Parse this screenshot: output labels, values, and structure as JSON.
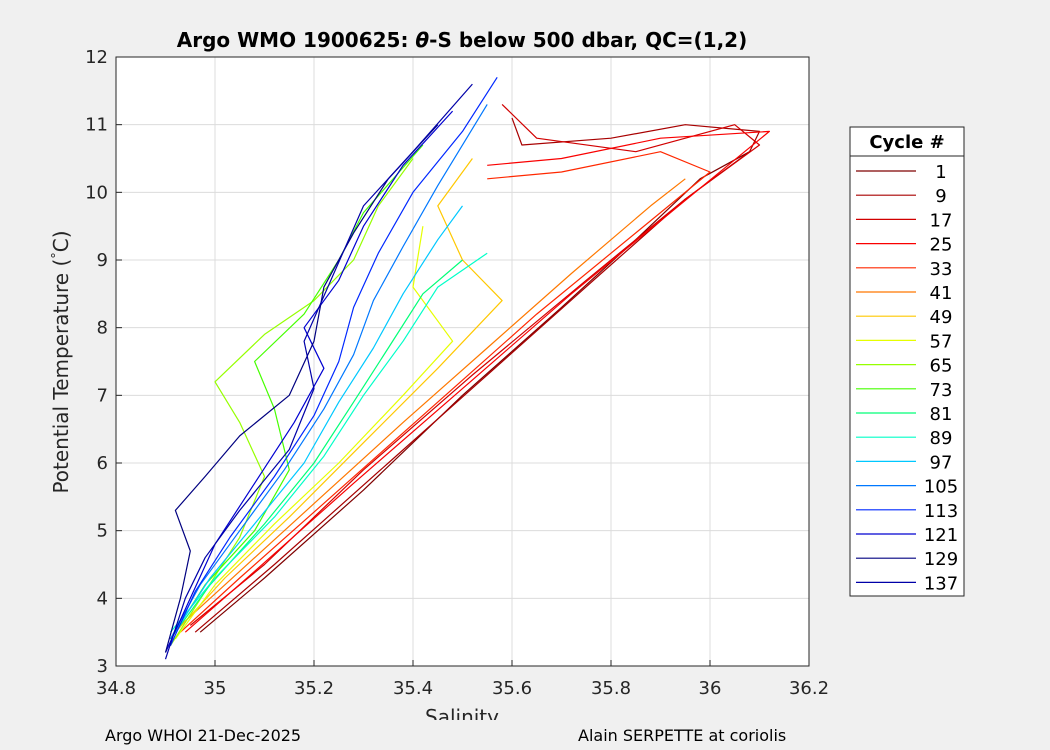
{
  "chart_data": {
    "type": "line",
    "title_main": "Argo WMO 1900625: ",
    "title_theta": "θ",
    "title_rest": "-S below 500 dbar,  QC=(1,2)",
    "xlabel": "Salinity",
    "ylabel": "Potential Temperature (",
    "ylabel_degree": "°",
    "ylabel_unit": "C)",
    "xlim": [
      34.8,
      36.2
    ],
    "ylim": [
      3,
      12
    ],
    "xticks": [
      "34.8",
      "35",
      "35.2",
      "35.4",
      "35.6",
      "35.8",
      "36",
      "36.2"
    ],
    "xtick_values": [
      34.8,
      35.0,
      35.2,
      35.4,
      35.6,
      35.8,
      36.0,
      36.2
    ],
    "yticks": [
      "3",
      "4",
      "5",
      "6",
      "7",
      "8",
      "9",
      "10",
      "11",
      "12"
    ],
    "ytick_values": [
      3,
      4,
      5,
      6,
      7,
      8,
      9,
      10,
      11,
      12
    ],
    "grid": true,
    "legend_title": "Cycle #",
    "legend_position": "right-outside",
    "series": [
      {
        "name": "1",
        "color": "#7f0000",
        "points": [
          [
            34.97,
            3.5
          ],
          [
            35.1,
            4.3
          ],
          [
            35.3,
            5.6
          ],
          [
            35.5,
            7.0
          ],
          [
            35.7,
            8.3
          ],
          [
            35.85,
            9.3
          ],
          [
            35.98,
            10.2
          ],
          [
            36.08,
            10.6
          ]
        ]
      },
      {
        "name": "9",
        "color": "#a80000",
        "points": [
          [
            34.96,
            3.5
          ],
          [
            35.12,
            4.5
          ],
          [
            35.35,
            6.0
          ],
          [
            35.55,
            7.3
          ],
          [
            35.78,
            8.8
          ],
          [
            35.95,
            9.9
          ],
          [
            36.08,
            10.6
          ],
          [
            36.1,
            10.9
          ],
          [
            35.95,
            11.0
          ],
          [
            35.8,
            10.8
          ],
          [
            35.62,
            10.7
          ],
          [
            35.6,
            11.1
          ]
        ]
      },
      {
        "name": "17",
        "color": "#d10000",
        "points": [
          [
            34.95,
            3.6
          ],
          [
            35.1,
            4.5
          ],
          [
            35.3,
            5.9
          ],
          [
            35.52,
            7.3
          ],
          [
            35.75,
            8.7
          ],
          [
            35.95,
            9.9
          ],
          [
            36.1,
            10.7
          ],
          [
            36.05,
            11.0
          ],
          [
            35.85,
            10.6
          ],
          [
            35.65,
            10.8
          ],
          [
            35.58,
            11.3
          ]
        ]
      },
      {
        "name": "25",
        "color": "#fa0000",
        "points": [
          [
            34.94,
            3.5
          ],
          [
            35.08,
            4.4
          ],
          [
            35.28,
            5.7
          ],
          [
            35.5,
            7.1
          ],
          [
            35.72,
            8.5
          ],
          [
            35.92,
            9.7
          ],
          [
            36.07,
            10.6
          ],
          [
            36.12,
            10.9
          ],
          [
            35.9,
            10.8
          ],
          [
            35.7,
            10.5
          ],
          [
            35.55,
            10.4
          ]
        ]
      },
      {
        "name": "33",
        "color": "#ff2800",
        "points": [
          [
            34.93,
            3.5
          ],
          [
            35.05,
            4.3
          ],
          [
            35.25,
            5.6
          ],
          [
            35.45,
            6.9
          ],
          [
            35.65,
            8.2
          ],
          [
            35.85,
            9.4
          ],
          [
            36.0,
            10.3
          ],
          [
            35.9,
            10.6
          ],
          [
            35.7,
            10.3
          ],
          [
            35.55,
            10.2
          ]
        ]
      },
      {
        "name": "41",
        "color": "#ff7800",
        "points": [
          [
            34.93,
            3.6
          ],
          [
            35.05,
            4.4
          ],
          [
            35.2,
            5.4
          ],
          [
            35.38,
            6.6
          ],
          [
            35.55,
            7.7
          ],
          [
            35.72,
            8.8
          ],
          [
            35.88,
            9.8
          ],
          [
            35.95,
            10.2
          ]
        ]
      },
      {
        "name": "49",
        "color": "#ffc800",
        "points": [
          [
            34.92,
            3.5
          ],
          [
            35.02,
            4.3
          ],
          [
            35.15,
            5.2
          ],
          [
            35.3,
            6.3
          ],
          [
            35.45,
            7.4
          ],
          [
            35.58,
            8.4
          ],
          [
            35.5,
            9.0
          ],
          [
            35.45,
            9.8
          ],
          [
            35.52,
            10.5
          ]
        ]
      },
      {
        "name": "57",
        "color": "#e6ff00",
        "points": [
          [
            34.92,
            3.4
          ],
          [
            35.0,
            4.2
          ],
          [
            35.12,
            5.1
          ],
          [
            35.25,
            6.0
          ],
          [
            35.38,
            7.0
          ],
          [
            35.48,
            7.8
          ],
          [
            35.4,
            8.6
          ],
          [
            35.42,
            9.5
          ]
        ]
      },
      {
        "name": "65",
        "color": "#96ff00",
        "points": [
          [
            34.91,
            3.3
          ],
          [
            34.98,
            4.1
          ],
          [
            35.05,
            4.9
          ],
          [
            35.1,
            5.8
          ],
          [
            35.05,
            6.6
          ],
          [
            35.0,
            7.2
          ],
          [
            35.1,
            7.9
          ],
          [
            35.2,
            8.4
          ],
          [
            35.28,
            9.0
          ],
          [
            35.33,
            9.8
          ],
          [
            35.4,
            10.5
          ]
        ]
      },
      {
        "name": "73",
        "color": "#46ff00",
        "points": [
          [
            34.91,
            3.4
          ],
          [
            34.98,
            4.2
          ],
          [
            35.08,
            5.0
          ],
          [
            35.15,
            5.9
          ],
          [
            35.12,
            6.8
          ],
          [
            35.08,
            7.5
          ],
          [
            35.18,
            8.2
          ],
          [
            35.25,
            9.0
          ],
          [
            35.3,
            9.7
          ],
          [
            35.42,
            10.7
          ]
        ]
      },
      {
        "name": "81",
        "color": "#00ff78",
        "points": [
          [
            34.91,
            3.4
          ],
          [
            34.99,
            4.2
          ],
          [
            35.1,
            5.1
          ],
          [
            35.2,
            6.0
          ],
          [
            35.28,
            6.9
          ],
          [
            35.35,
            7.7
          ],
          [
            35.42,
            8.5
          ],
          [
            35.5,
            9.0
          ]
        ]
      },
      {
        "name": "89",
        "color": "#00ffc8",
        "points": [
          [
            34.91,
            3.5
          ],
          [
            35.0,
            4.3
          ],
          [
            35.12,
            5.2
          ],
          [
            35.22,
            6.1
          ],
          [
            35.3,
            7.0
          ],
          [
            35.38,
            7.8
          ],
          [
            35.45,
            8.6
          ],
          [
            35.55,
            9.1
          ]
        ]
      },
      {
        "name": "97",
        "color": "#00c8ff",
        "points": [
          [
            34.91,
            3.4
          ],
          [
            34.99,
            4.3
          ],
          [
            35.08,
            5.1
          ],
          [
            35.18,
            6.0
          ],
          [
            35.25,
            6.9
          ],
          [
            35.32,
            7.7
          ],
          [
            35.38,
            8.5
          ],
          [
            35.45,
            9.3
          ],
          [
            35.5,
            9.8
          ]
        ]
      },
      {
        "name": "105",
        "color": "#0078ff",
        "points": [
          [
            34.91,
            3.4
          ],
          [
            34.97,
            4.2
          ],
          [
            35.05,
            5.0
          ],
          [
            35.14,
            5.9
          ],
          [
            35.22,
            6.8
          ],
          [
            35.28,
            7.6
          ],
          [
            35.32,
            8.4
          ],
          [
            35.38,
            9.2
          ],
          [
            35.45,
            10.1
          ],
          [
            35.55,
            11.3
          ]
        ]
      },
      {
        "name": "113",
        "color": "#0028ff",
        "points": [
          [
            34.91,
            3.3
          ],
          [
            34.96,
            4.1
          ],
          [
            35.03,
            4.9
          ],
          [
            35.12,
            5.8
          ],
          [
            35.2,
            6.7
          ],
          [
            35.25,
            7.5
          ],
          [
            35.28,
            8.3
          ],
          [
            35.33,
            9.1
          ],
          [
            35.4,
            10.0
          ],
          [
            35.5,
            10.9
          ],
          [
            35.57,
            11.7
          ]
        ]
      },
      {
        "name": "121",
        "color": "#0000d1",
        "points": [
          [
            34.9,
            3.2
          ],
          [
            34.95,
            4.0
          ],
          [
            35.0,
            4.8
          ],
          [
            35.08,
            5.7
          ],
          [
            35.16,
            6.6
          ],
          [
            35.22,
            7.4
          ],
          [
            35.18,
            8.0
          ],
          [
            35.25,
            8.7
          ],
          [
            35.3,
            9.5
          ],
          [
            35.38,
            10.4
          ],
          [
            35.48,
            11.2
          ]
        ]
      },
      {
        "name": "129",
        "color": "#000080",
        "points": [
          [
            34.9,
            3.2
          ],
          [
            34.93,
            4.0
          ],
          [
            34.95,
            4.7
          ],
          [
            34.92,
            5.3
          ],
          [
            34.98,
            5.8
          ],
          [
            35.05,
            6.4
          ],
          [
            35.15,
            7.0
          ],
          [
            35.2,
            7.8
          ],
          [
            35.22,
            8.6
          ],
          [
            35.28,
            9.4
          ],
          [
            35.35,
            10.2
          ],
          [
            35.45,
            11.0
          ]
        ]
      },
      {
        "name": "137",
        "color": "#0000a8",
        "points": [
          [
            34.9,
            3.1
          ],
          [
            34.94,
            4.0
          ],
          [
            34.98,
            4.6
          ],
          [
            35.05,
            5.3
          ],
          [
            35.15,
            6.2
          ],
          [
            35.2,
            7.1
          ],
          [
            35.18,
            7.8
          ],
          [
            35.24,
            8.8
          ],
          [
            35.3,
            9.8
          ],
          [
            35.4,
            10.6
          ],
          [
            35.52,
            11.6
          ]
        ]
      }
    ]
  },
  "footer": {
    "left": "Argo WHOI 21-Dec-2025",
    "right": "Alain SERPETTE at coriolis"
  }
}
